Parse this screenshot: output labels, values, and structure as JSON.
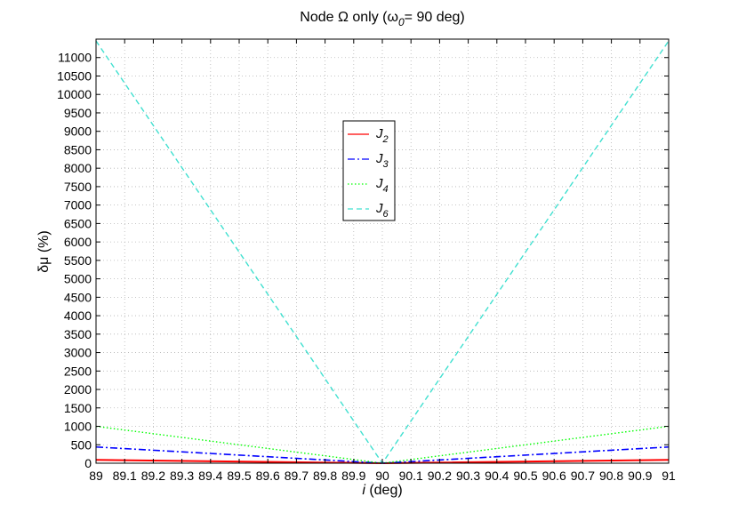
{
  "chart_data": {
    "type": "line",
    "title": {
      "prefix": "Node Ω only (ω",
      "subscript": "0",
      "suffix": "= 90 deg)"
    },
    "xlabel": {
      "italic": "i",
      "rest": " (deg)"
    },
    "ylabel": "δμ (%)",
    "xlim": [
      89,
      91
    ],
    "ylim": [
      0,
      11500
    ],
    "xticks": [
      89,
      89.1,
      89.2,
      89.3,
      89.4,
      89.5,
      89.6,
      89.7,
      89.8,
      89.9,
      90,
      90.1,
      90.2,
      90.3,
      90.4,
      90.5,
      90.6,
      90.7,
      90.8,
      90.9,
      91
    ],
    "xtick_labels": [
      "89",
      "89.1",
      "89.2",
      "89.3",
      "89.4",
      "89.5",
      "89.6",
      "89.7",
      "89.8",
      "89.9",
      "90",
      "90.1",
      "90.2",
      "90.3",
      "90.4",
      "90.5",
      "90.6",
      "90.7",
      "90.8",
      "90.9",
      "91"
    ],
    "yticks": [
      0,
      500,
      1000,
      1500,
      2000,
      2500,
      3000,
      3500,
      4000,
      4500,
      5000,
      5500,
      6000,
      6500,
      7000,
      7500,
      8000,
      8500,
      9000,
      9500,
      10000,
      10500,
      11000
    ],
    "ytick_labels": [
      "0",
      "500",
      "1000",
      "1500",
      "2000",
      "2500",
      "3000",
      "3500",
      "4000",
      "4500",
      "5000",
      "5500",
      "6000",
      "6500",
      "7000",
      "7500",
      "8000",
      "8500",
      "9000",
      "9500",
      "10000",
      "10500",
      "11000"
    ],
    "grid": true,
    "legend_position": "upper-center",
    "series": [
      {
        "name": "J",
        "subscript": "2",
        "color": "#ff0000",
        "dash": "solid",
        "x": [
          89,
          90,
          91
        ],
        "y": [
          90,
          0,
          90
        ]
      },
      {
        "name": "J",
        "subscript": "3",
        "color": "#0000ff",
        "dash": "dashdot",
        "x": [
          89,
          90,
          91
        ],
        "y": [
          440,
          0,
          440
        ]
      },
      {
        "name": "J",
        "subscript": "4",
        "color": "#00ff00",
        "dash": "dotted",
        "x": [
          89,
          90,
          91
        ],
        "y": [
          1000,
          0,
          1000
        ]
      },
      {
        "name": "J",
        "subscript": "6",
        "color": "#40e0d0",
        "dash": "dashed",
        "x": [
          89,
          90,
          91
        ],
        "y": [
          11450,
          0,
          11450
        ]
      }
    ]
  }
}
